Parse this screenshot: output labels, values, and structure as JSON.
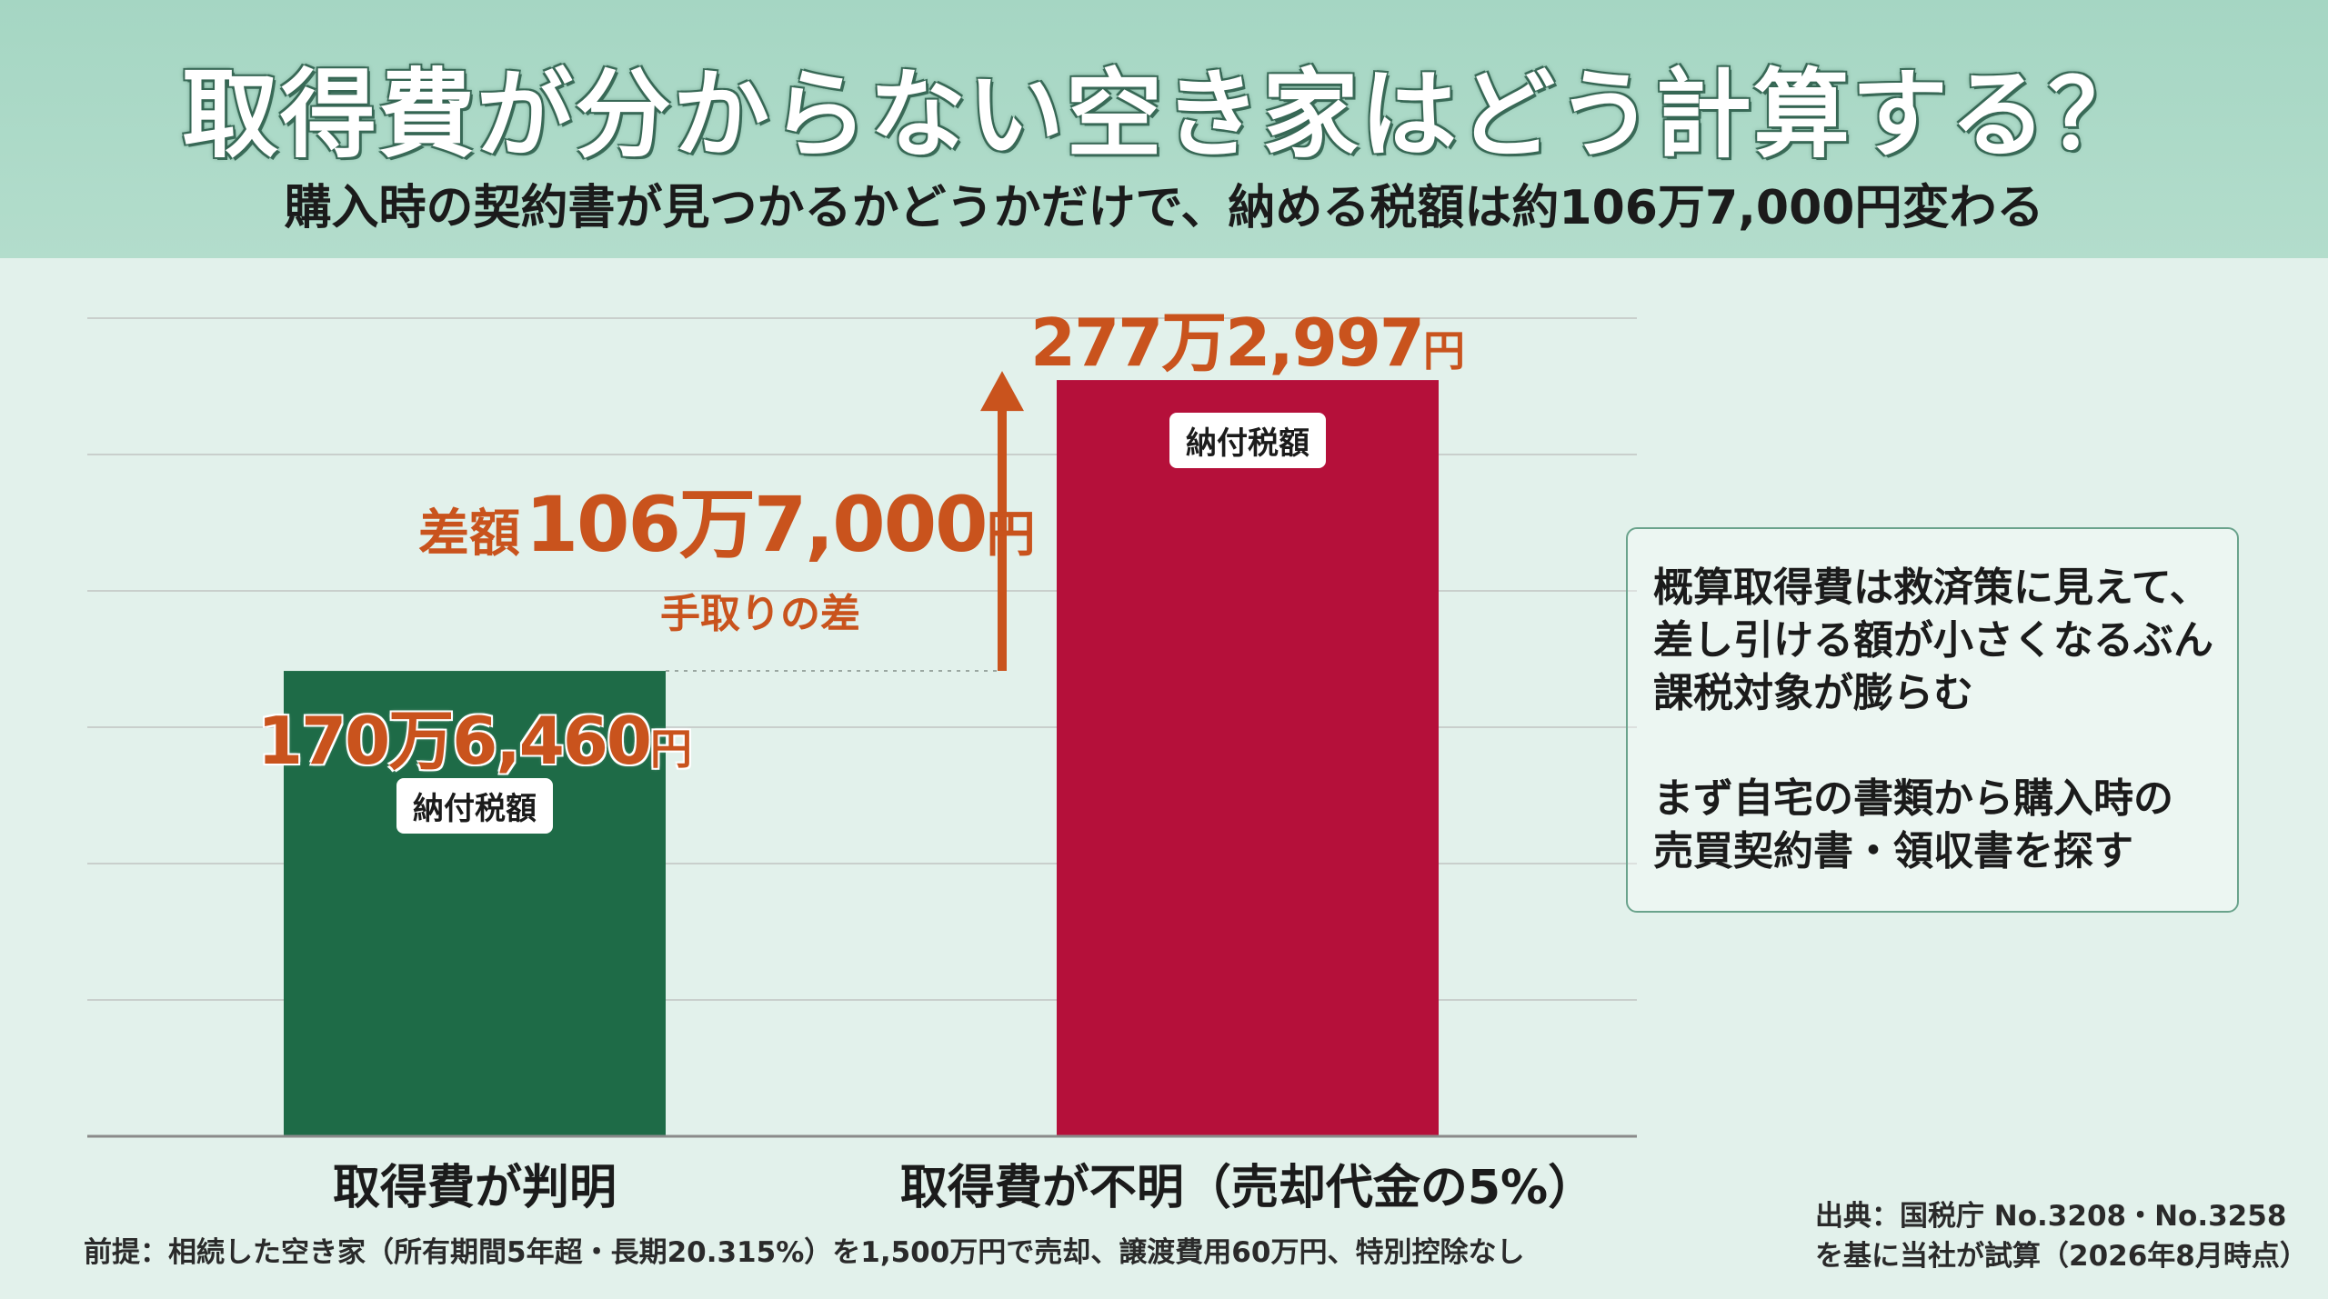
{
  "header": {
    "title": "取得費が分からない空き家はどう計算する？",
    "subtitle": "購入時の契約書が見つかるかどうかだけで、納める税額は約106万7,000円変わる"
  },
  "chart_data": {
    "type": "bar",
    "categories": [
      "取得費が判明",
      "取得費が不明（売却代金の5%）"
    ],
    "values": [
      1706460,
      2772997
    ],
    "value_labels": [
      {
        "num": "170万6,460",
        "unit": "円"
      },
      {
        "num": "277万2,997",
        "unit": "円"
      }
    ],
    "bar_labels": [
      "納付税額",
      "納付税額"
    ],
    "colors": [
      "#1e6b47",
      "#b5103a"
    ],
    "ylim": [
      0,
      3000000
    ],
    "grid": true,
    "difference": {
      "prefix": "差額",
      "num": "106万7,000",
      "unit": "円",
      "sub": "手取りの差",
      "color": "#c9531d"
    }
  },
  "note": {
    "lines": [
      "概算取得費は救済策に見えて、",
      "差し引ける額が小さくなるぶん",
      "課税対象が膨らむ"
    ],
    "lines2": [
      "まず自宅の書類から購入時の",
      "売買契約書・領収書を探す"
    ]
  },
  "footer": {
    "premise": "前提：相続した空き家（所有期間5年超・長期20.315%）を1,500万円で売却、譲渡費用60万円、特別控除なし",
    "source_line1": "出典：国税庁 No.3208・No.3258",
    "source_line2": "を基に当社が試算（2026年8月時点）"
  }
}
